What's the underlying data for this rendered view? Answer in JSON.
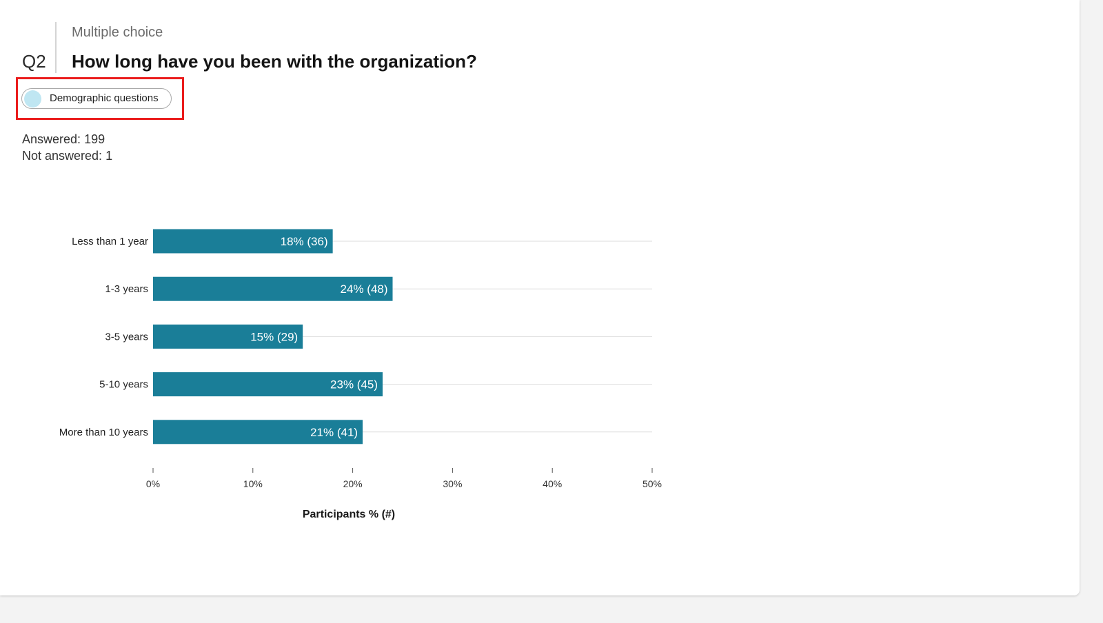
{
  "question": {
    "number": "Q2",
    "type": "Multiple choice",
    "title": "How long have you been with the organization?",
    "tag": {
      "label": "Demographic questions",
      "dot_color": "#bfe6f2",
      "highlight_color": "#ea1c1c"
    },
    "stats": {
      "answered_label": "Answered:",
      "answered_value": "199",
      "not_answered_label": "Not answered:",
      "not_answered_value": "1"
    }
  },
  "chart_data": {
    "type": "bar",
    "orientation": "horizontal",
    "categories": [
      "Less than 1 year",
      "1-3 years",
      "3-5 years",
      "5-10 years",
      "More than 10 years"
    ],
    "values": [
      18,
      24,
      15,
      23,
      21
    ],
    "counts": [
      36,
      48,
      29,
      45,
      41
    ],
    "bar_labels": [
      "18% (36)",
      "24% (48)",
      "15% (29)",
      "23% (45)",
      "21% (41)"
    ],
    "xlabel": "Participants % (#)",
    "xlim": [
      0,
      50
    ],
    "xticks": [
      "0%",
      "10%",
      "20%",
      "30%",
      "40%",
      "50%"
    ],
    "bar_color": "#1a7e98",
    "grid": true
  }
}
